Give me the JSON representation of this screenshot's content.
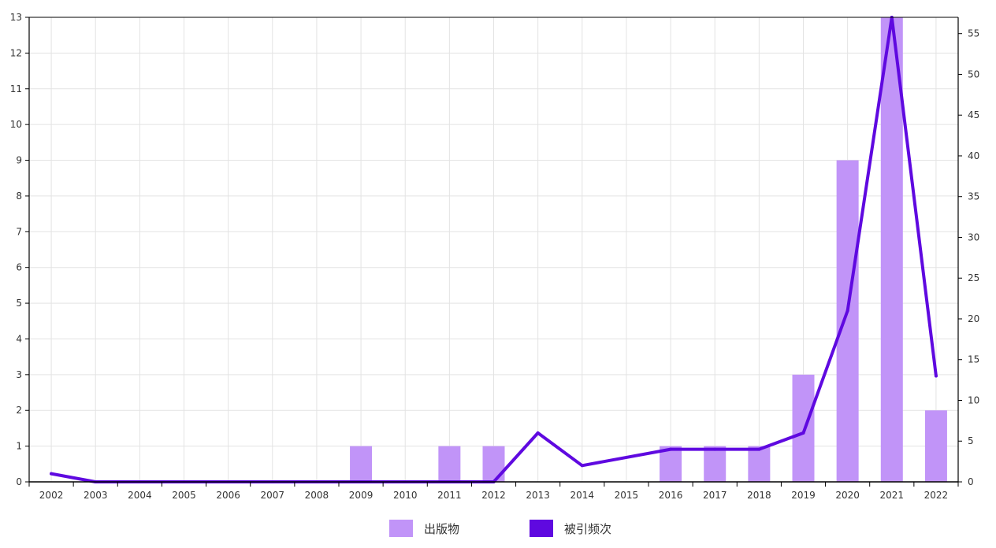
{
  "chart_data": {
    "type": "bar+line",
    "categories": [
      "2002",
      "2003",
      "2004",
      "2005",
      "2006",
      "2007",
      "2008",
      "2009",
      "2010",
      "2011",
      "2012",
      "2013",
      "2014",
      "2015",
      "2016",
      "2017",
      "2018",
      "2019",
      "2020",
      "2021",
      "2022"
    ],
    "series": [
      {
        "name": "出版物",
        "type": "bar",
        "axis": "left",
        "color": "#c194f8",
        "values": [
          0,
          0,
          0,
          0,
          0,
          0,
          0,
          1,
          0,
          1,
          1,
          0,
          0,
          0,
          1,
          1,
          1,
          3,
          9,
          13,
          2
        ]
      },
      {
        "name": "被引频次",
        "type": "line",
        "axis": "right",
        "color": "#5f09e0",
        "values": [
          1,
          0,
          0,
          0,
          0,
          0,
          0,
          0,
          0,
          0,
          0,
          6,
          2,
          null,
          4,
          4,
          4,
          6,
          21,
          57,
          13
        ]
      }
    ],
    "y_left": {
      "min": 0,
      "max": 13,
      "ticks": [
        0,
        1,
        2,
        3,
        4,
        5,
        6,
        7,
        8,
        9,
        10,
        11,
        12,
        13
      ]
    },
    "y_right": {
      "min": 0,
      "max": 57,
      "ticks": [
        0,
        5,
        10,
        15,
        20,
        25,
        30,
        35,
        40,
        45,
        50,
        55
      ]
    },
    "grid": true,
    "legend_position": "bottom-center"
  }
}
